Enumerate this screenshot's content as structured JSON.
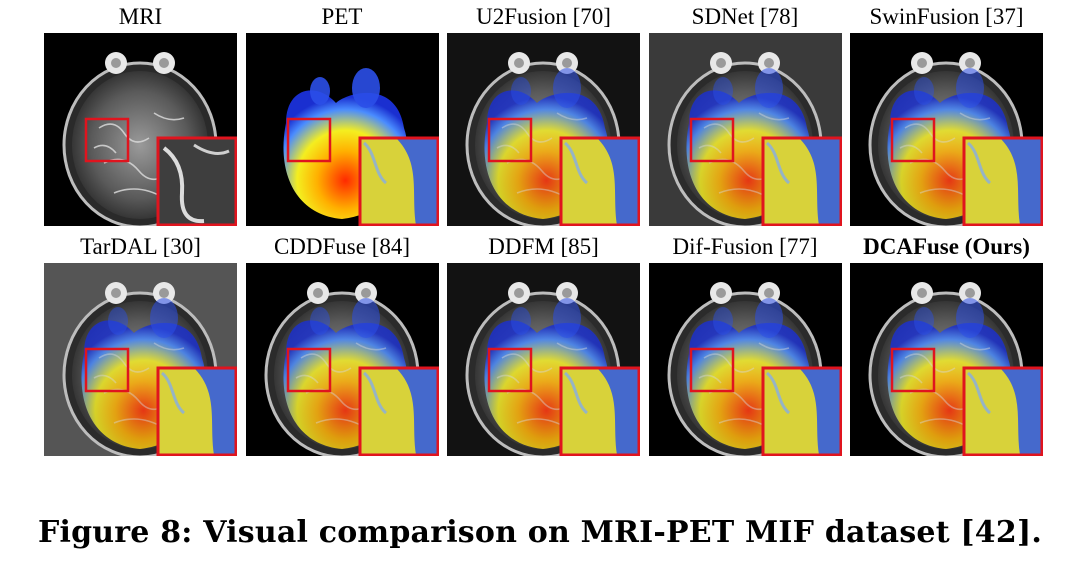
{
  "figure": {
    "caption": "Figure 8: Visual comparison on MRI-PET MIF dataset [42].",
    "highlight_color": "#e0141e",
    "panels": [
      {
        "label": "MRI",
        "style": "mri",
        "bold": false
      },
      {
        "label": "PET",
        "style": "pet",
        "bold": false
      },
      {
        "label": "U2Fusion [70]",
        "style": "fused-dark",
        "bold": false
      },
      {
        "label": "SDNet [78]",
        "style": "fused-gray",
        "bold": false
      },
      {
        "label": "SwinFusion [37]",
        "style": "fused",
        "bold": false
      },
      {
        "label": "TarDAL [30]",
        "style": "fused-graybg",
        "bold": false
      },
      {
        "label": "CDDFuse [84]",
        "style": "fused",
        "bold": false
      },
      {
        "label": "DDFM [85]",
        "style": "fused-dark",
        "bold": false
      },
      {
        "label": "Dif-Fusion [77]",
        "style": "fused-soft",
        "bold": false
      },
      {
        "label": "DCAFuse (Ours)",
        "style": "fused",
        "bold": true
      }
    ]
  }
}
